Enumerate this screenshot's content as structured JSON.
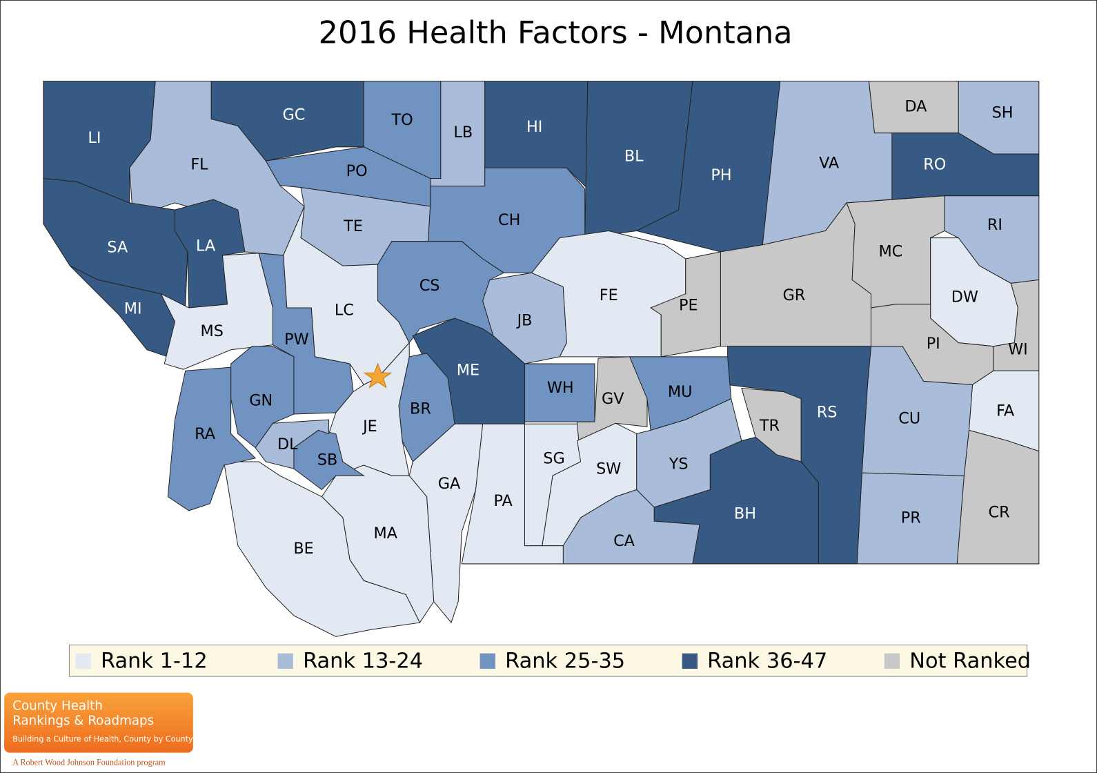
{
  "title": "2016 Health Factors - Montana",
  "legend": [
    {
      "label": "Rank 1-12",
      "color": "#e2e9f3"
    },
    {
      "label": "Rank 13-24",
      "color": "#a9bddb"
    },
    {
      "label": "Rank 25-35",
      "color": "#7093c2"
    },
    {
      "label": "Rank 36-47",
      "color": "#375a85"
    },
    {
      "label": "Not Ranked",
      "color": "#c8c8c8"
    }
  ],
  "counties": [
    {
      "label": "FL",
      "category": 1
    },
    {
      "label": "LI",
      "category": 3
    },
    {
      "label": "GC",
      "category": 3
    },
    {
      "label": "TO",
      "category": 2
    },
    {
      "label": "LB",
      "category": 1
    },
    {
      "label": "HI",
      "category": 3
    },
    {
      "label": "BL",
      "category": 3
    },
    {
      "label": "PH",
      "category": 3
    },
    {
      "label": "VA",
      "category": 1
    },
    {
      "label": "DA",
      "category": 4
    },
    {
      "label": "SH",
      "category": 1
    },
    {
      "label": "RO",
      "category": 3
    },
    {
      "label": "PO",
      "category": 2
    },
    {
      "label": "TE",
      "category": 1
    },
    {
      "label": "CH",
      "category": 2
    },
    {
      "label": "SA",
      "category": 3
    },
    {
      "label": "LA",
      "category": 3
    },
    {
      "label": "MI",
      "category": 3
    },
    {
      "label": "MS",
      "category": 0
    },
    {
      "label": "LC",
      "category": 0
    },
    {
      "label": "PW",
      "category": 2
    },
    {
      "label": "CS",
      "category": 2
    },
    {
      "label": "JB",
      "category": 1
    },
    {
      "label": "FE",
      "category": 0
    },
    {
      "label": "PE",
      "category": 4
    },
    {
      "label": "GR",
      "category": 4
    },
    {
      "label": "MC",
      "category": 4
    },
    {
      "label": "RI",
      "category": 1
    },
    {
      "label": "DW",
      "category": 0
    },
    {
      "label": "PI",
      "category": 4
    },
    {
      "label": "WI",
      "category": 4
    },
    {
      "label": "FA",
      "category": 0
    },
    {
      "label": "CR",
      "category": 4
    },
    {
      "label": "CU",
      "category": 1
    },
    {
      "label": "PR",
      "category": 1
    },
    {
      "label": "RS",
      "category": 3
    },
    {
      "label": "TR",
      "category": 4
    },
    {
      "label": "BH",
      "category": 3
    },
    {
      "label": "MU",
      "category": 2
    },
    {
      "label": "WH",
      "category": 2
    },
    {
      "label": "GV",
      "category": 4
    },
    {
      "label": "ME",
      "category": 3
    },
    {
      "label": "BR",
      "category": 2
    },
    {
      "label": "JE",
      "category": 0
    },
    {
      "label": "GA",
      "category": 0
    },
    {
      "label": "PA",
      "category": 0
    },
    {
      "label": "SG",
      "category": 0
    },
    {
      "label": "SW",
      "category": 0
    },
    {
      "label": "CA",
      "category": 1
    },
    {
      "label": "YS",
      "category": 1
    },
    {
      "label": "MA",
      "category": 0
    },
    {
      "label": "BE",
      "category": 0
    },
    {
      "label": "SB",
      "category": 2
    },
    {
      "label": "DL",
      "category": 1
    },
    {
      "label": "GN",
      "category": 2
    },
    {
      "label": "RA",
      "category": 2
    }
  ],
  "logo": {
    "line1": "County Health",
    "line2": "Rankings & Roadmaps",
    "tagline": "Building a Culture of Health, County by County",
    "footer": "A Robert Wood Johnson Foundation program"
  }
}
